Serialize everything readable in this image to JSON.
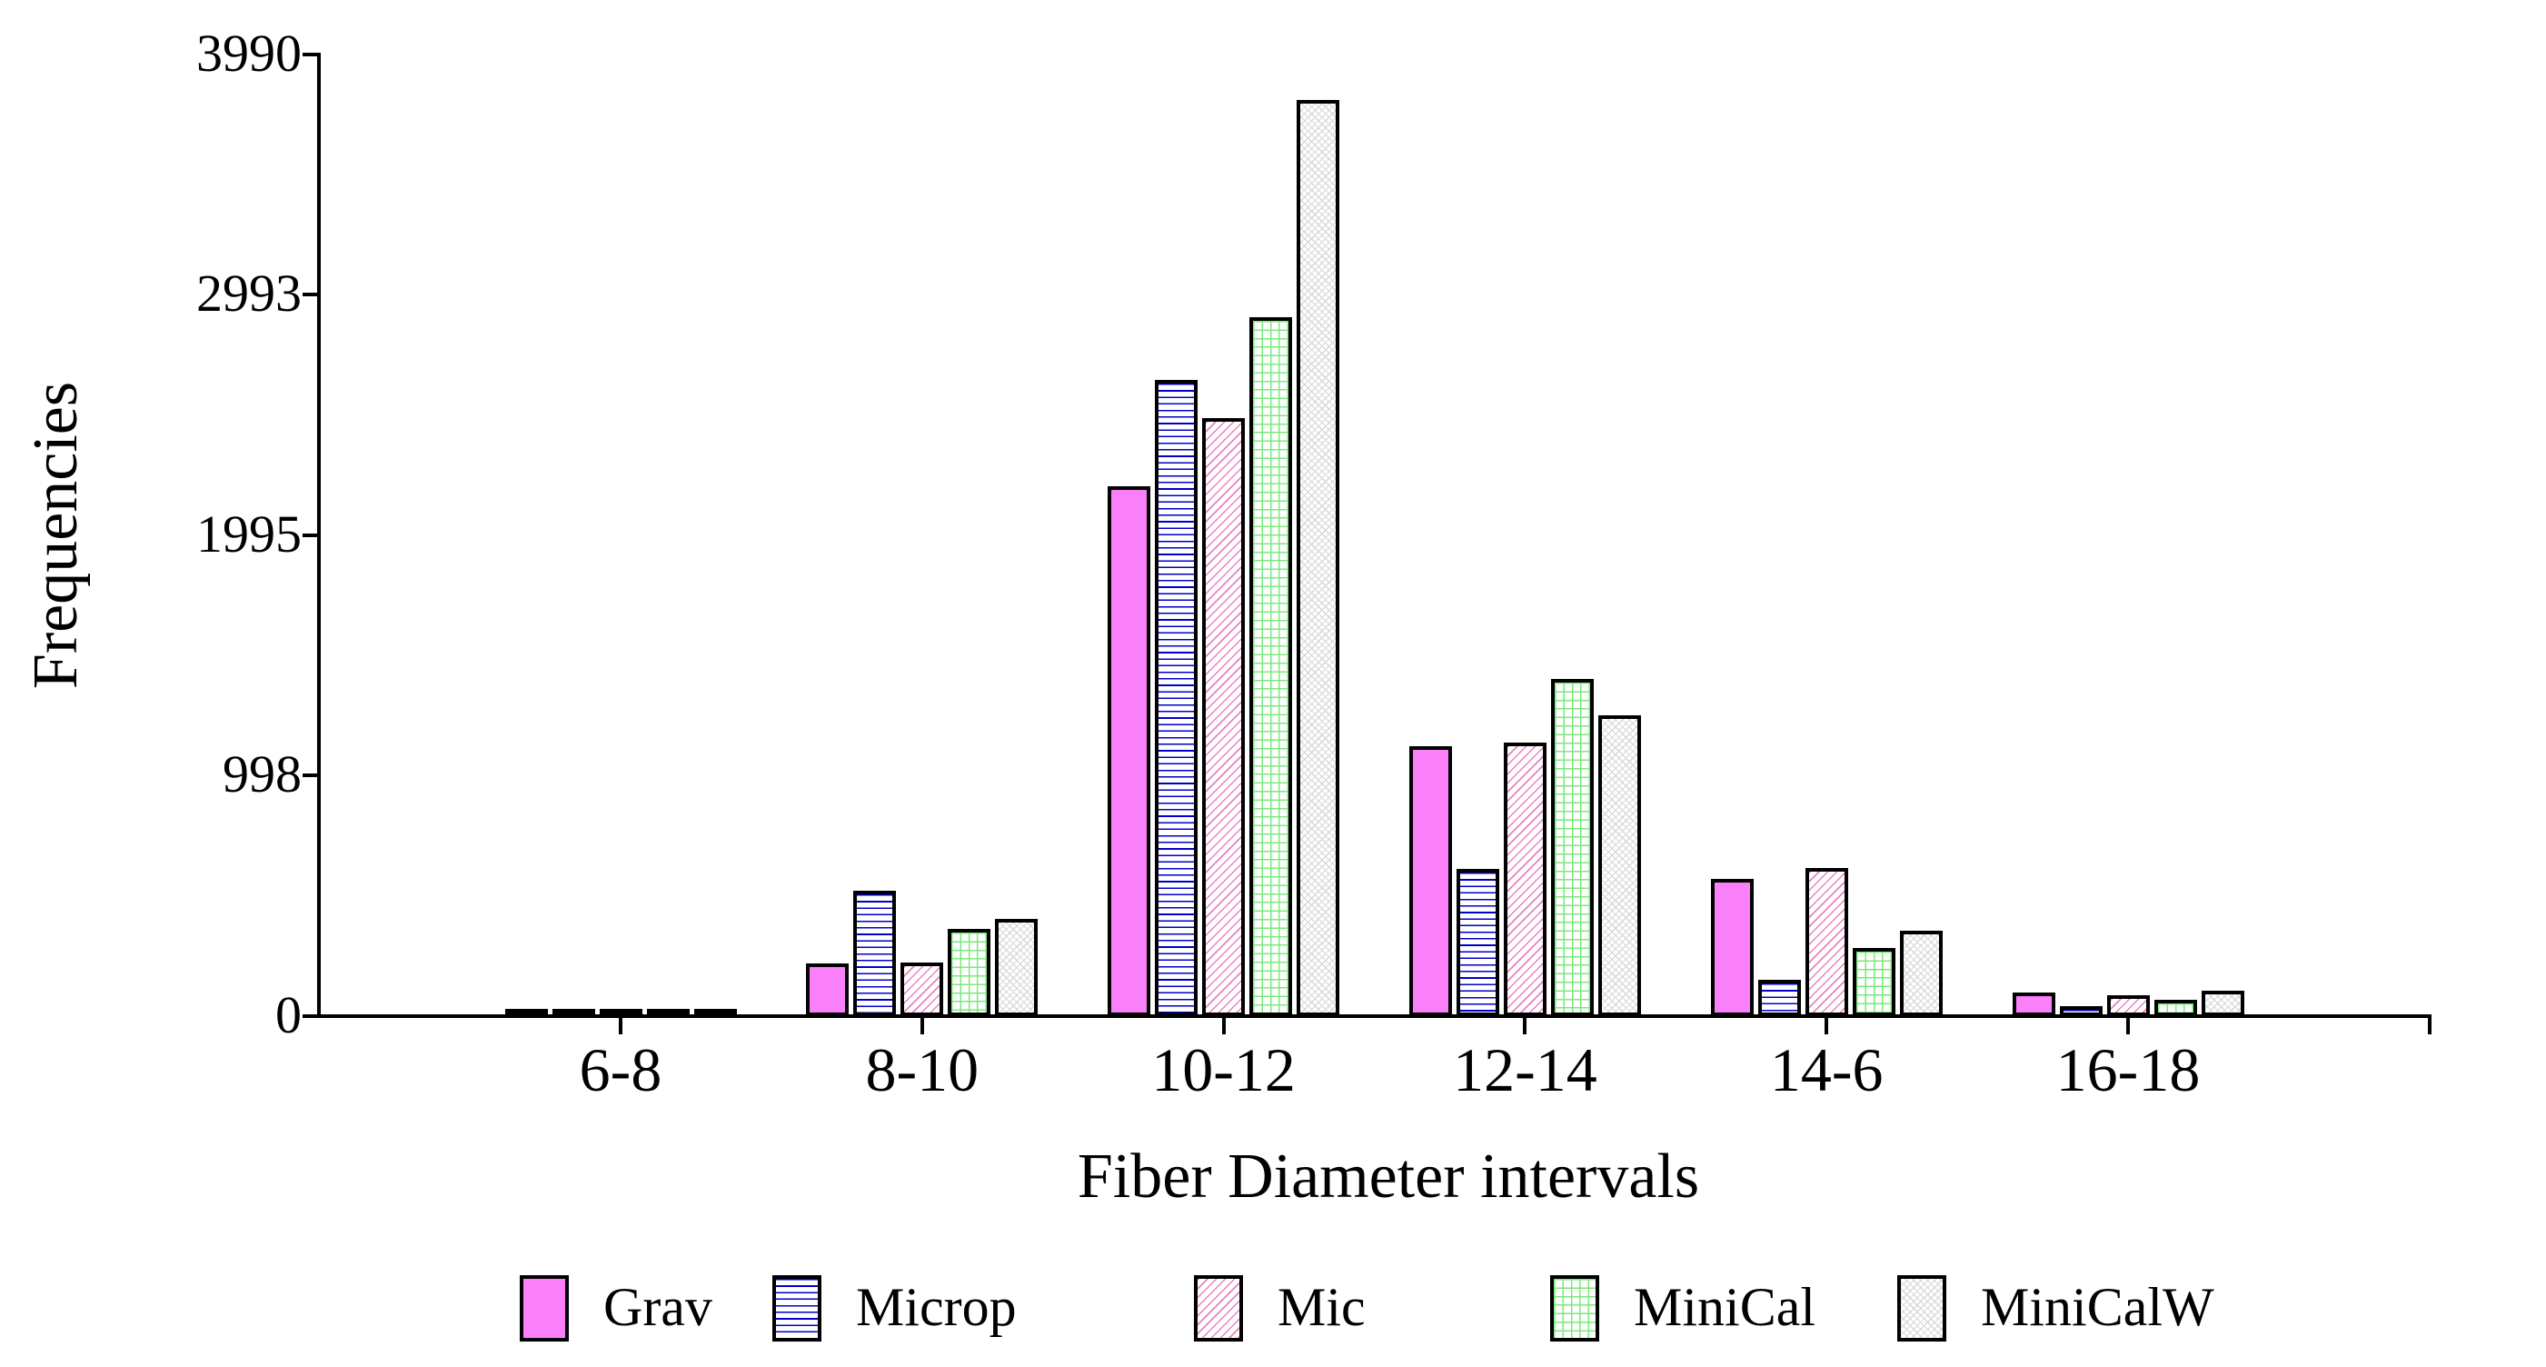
{
  "chart_data": {
    "type": "bar",
    "title": "",
    "xlabel": "Fiber Diameter intervals",
    "ylabel": "Frequencies",
    "categories": [
      "6-8",
      "8-10",
      "10-12",
      "12-14",
      "14-6",
      "16-18"
    ],
    "yticks": [
      0,
      998,
      1995,
      2993,
      3990
    ],
    "ylim": [
      0,
      3990
    ],
    "grid": false,
    "legend_position": "bottom",
    "bar_outline_color": "#000000",
    "series": [
      {
        "name": "Grav",
        "pattern": "solid",
        "color": "#FA80FA",
        "values": [
          20,
          220,
          2200,
          1120,
          570,
          98
        ]
      },
      {
        "name": "Microp",
        "pattern": "horizontal-lines",
        "color": "#0000C8",
        "values": [
          22,
          520,
          2640,
          612,
          151,
          40
        ]
      },
      {
        "name": "Mic",
        "pattern": "diagonal-hatch",
        "color": "#E882BE",
        "values": [
          32,
          222,
          2480,
          1135,
          615,
          85
        ]
      },
      {
        "name": "MiniCal",
        "pattern": "grid",
        "color": "#7CE87C",
        "values": [
          18,
          362,
          2900,
          1400,
          283,
          66
        ]
      },
      {
        "name": "MiniCalW",
        "pattern": "diamond-crosshatch",
        "color": "#D8D8D8",
        "values": [
          29,
          402,
          3800,
          1250,
          354,
          104
        ]
      }
    ]
  }
}
